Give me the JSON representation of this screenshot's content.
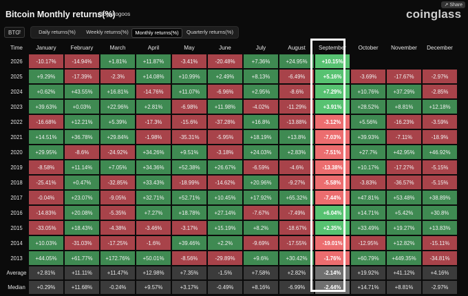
{
  "header": {
    "title": "Bitcoin Monthly returns(%)",
    "handle": "@cryptogoos",
    "logo": "coinglass",
    "share_label": "Share"
  },
  "controls": {
    "asset": "BTC",
    "tabs": [
      {
        "label": "Daily returns(%)",
        "active": false
      },
      {
        "label": "Weekly returns(%)",
        "active": false
      },
      {
        "label": "Monthly returns(%)",
        "active": true
      },
      {
        "label": "Quarterly returns(%)",
        "active": false
      }
    ]
  },
  "table": {
    "corner_header": "Time",
    "months": [
      "January",
      "February",
      "March",
      "April",
      "May",
      "June",
      "July",
      "August",
      "September",
      "October",
      "November",
      "December"
    ],
    "highlight_month": "September",
    "rows": [
      {
        "label": "2026",
        "values": [
          "-10.17%",
          "-14.94%",
          "+1.81%",
          "+11.87%",
          "-3.41%",
          "-20.48%",
          "+7.36%",
          "+24.95%",
          "+10.15%",
          "",
          "",
          ""
        ]
      },
      {
        "label": "2025",
        "values": [
          "+9.29%",
          "-17.39%",
          "-2.3%",
          "+14.08%",
          "+10.99%",
          "+2.49%",
          "+8.13%",
          "-6.49%",
          "+5.16%",
          "-3.69%",
          "-17.67%",
          "-2.97%"
        ]
      },
      {
        "label": "2024",
        "values": [
          "+0.62%",
          "+43.55%",
          "+16.81%",
          "-14.76%",
          "+11.07%",
          "-6.96%",
          "+2.95%",
          "-8.6%",
          "+7.29%",
          "+10.76%",
          "+37.29%",
          "-2.85%"
        ]
      },
      {
        "label": "2023",
        "values": [
          "+39.63%",
          "+0.03%",
          "+22.96%",
          "+2.81%",
          "-6.98%",
          "+11.98%",
          "-4.02%",
          "-11.29%",
          "+3.91%",
          "+28.52%",
          "+8.81%",
          "+12.18%"
        ]
      },
      {
        "label": "2022",
        "values": [
          "-16.68%",
          "+12.21%",
          "+5.39%",
          "-17.3%",
          "-15.6%",
          "-37.28%",
          "+16.8%",
          "-13.88%",
          "-3.12%",
          "+5.56%",
          "-16.23%",
          "-3.59%"
        ]
      },
      {
        "label": "2021",
        "values": [
          "+14.51%",
          "+36.78%",
          "+29.84%",
          "-1.98%",
          "-35.31%",
          "-5.95%",
          "+18.19%",
          "+13.8%",
          "-7.03%",
          "+39.93%",
          "-7.11%",
          "-18.9%"
        ]
      },
      {
        "label": "2020",
        "values": [
          "+29.95%",
          "-8.6%",
          "-24.92%",
          "+34.26%",
          "+9.51%",
          "-3.18%",
          "+24.03%",
          "+2.83%",
          "-7.51%",
          "+27.7%",
          "+42.95%",
          "+46.92%"
        ]
      },
      {
        "label": "2019",
        "values": [
          "-8.58%",
          "+11.14%",
          "+7.05%",
          "+34.36%",
          "+52.38%",
          "+26.67%",
          "-6.59%",
          "-4.6%",
          "-13.38%",
          "+10.17%",
          "-17.27%",
          "-5.15%"
        ]
      },
      {
        "label": "2018",
        "values": [
          "-25.41%",
          "+0.47%",
          "-32.85%",
          "+33.43%",
          "-18.99%",
          "-14.62%",
          "+20.96%",
          "-9.27%",
          "-5.58%",
          "-3.83%",
          "-36.57%",
          "-5.15%"
        ]
      },
      {
        "label": "2017",
        "values": [
          "-0.04%",
          "+23.07%",
          "-9.05%",
          "+32.71%",
          "+52.71%",
          "+10.45%",
          "+17.92%",
          "+65.32%",
          "-7.44%",
          "+47.81%",
          "+53.48%",
          "+38.89%"
        ]
      },
      {
        "label": "2016",
        "values": [
          "-14.83%",
          "+20.08%",
          "-5.35%",
          "+7.27%",
          "+18.78%",
          "+27.14%",
          "-7.67%",
          "-7.49%",
          "+6.04%",
          "+14.71%",
          "+5.42%",
          "+30.8%"
        ]
      },
      {
        "label": "2015",
        "values": [
          "-33.05%",
          "+18.43%",
          "-4.38%",
          "-3.46%",
          "-3.17%",
          "+15.19%",
          "+8.2%",
          "-18.67%",
          "+2.35%",
          "+33.49%",
          "+19.27%",
          "+13.83%"
        ]
      },
      {
        "label": "2014",
        "values": [
          "+10.03%",
          "-31.03%",
          "-17.25%",
          "-1.6%",
          "+39.46%",
          "+2.2%",
          "-9.69%",
          "-17.55%",
          "-19.01%",
          "-12.95%",
          "+12.82%",
          "-15.11%"
        ]
      },
      {
        "label": "2013",
        "values": [
          "+44.05%",
          "+61.77%",
          "+172.76%",
          "+50.01%",
          "-8.56%",
          "-29.89%",
          "+9.6%",
          "+30.42%",
          "-1.76%",
          "+60.79%",
          "+449.35%",
          "-34.81%"
        ]
      }
    ],
    "stats": [
      {
        "label": "Average",
        "values": [
          "+2.81%",
          "+11.11%",
          "+11.47%",
          "+12.98%",
          "+7.35%",
          "-1.5%",
          "+7.58%",
          "+2.82%",
          "-2.14%",
          "+19.92%",
          "+41.12%",
          "+4.16%"
        ]
      },
      {
        "label": "Median",
        "values": [
          "+0.29%",
          "+11.68%",
          "-0.24%",
          "+9.57%",
          "+3.17%",
          "-0.49%",
          "+8.16%",
          "-6.99%",
          "-2.44%",
          "+14.71%",
          "+8.81%",
          "-2.97%"
        ]
      }
    ]
  }
}
